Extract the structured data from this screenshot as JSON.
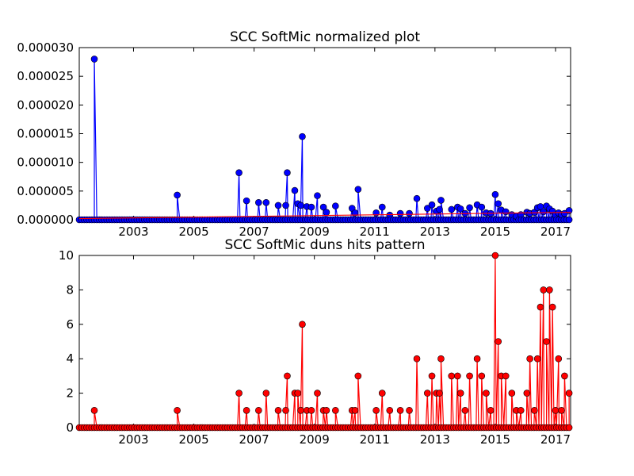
{
  "chart_data": [
    {
      "type": "line",
      "title": "SCC SoftMic normalized plot",
      "xlim": [
        2001.2,
        2017.5
      ],
      "ylim": [
        0,
        3e-05
      ],
      "x_ticks": [
        "2003",
        "2005",
        "2007",
        "2009",
        "2011",
        "2013",
        "2015",
        "2017"
      ],
      "y_ticks": [
        "0.000000",
        "0.000005",
        "0.000010",
        "0.000015",
        "0.000020",
        "0.000025",
        "0.000030"
      ],
      "series": [
        {
          "color": "#0000ff",
          "marker": "circle",
          "x": [
            2001.7,
            2004.45,
            2006.5,
            2006.75,
            2007.15,
            2007.4,
            2007.8,
            2008.05,
            2008.1,
            2008.35,
            2008.45,
            2008.55,
            2008.6,
            2008.75,
            2008.9,
            2009.1,
            2009.3,
            2009.4,
            2009.7,
            2010.25,
            2010.35,
            2010.45,
            2011.05,
            2011.25,
            2011.5,
            2011.85,
            2012.15,
            2012.4,
            2012.75,
            2012.9,
            2013.05,
            2013.15,
            2013.2,
            2013.55,
            2013.75,
            2013.85,
            2014.0,
            2014.15,
            2014.4,
            2014.55,
            2014.7,
            2014.85,
            2015.0,
            2015.1,
            2015.2,
            2015.35,
            2015.55,
            2015.7,
            2015.85,
            2016.05,
            2016.15,
            2016.3,
            2016.4,
            2016.5,
            2016.6,
            2016.7,
            2016.8,
            2016.9,
            2017.0,
            2017.1,
            2017.2,
            2017.3,
            2017.45
          ],
          "y": [
            2.8e-05,
            4.3e-06,
            8.2e-06,
            3.3e-06,
            3e-06,
            3e-06,
            2.5e-06,
            2.5e-06,
            8.2e-06,
            5.1e-06,
            2.8e-06,
            2.5e-06,
            1.45e-05,
            2.3e-06,
            2.2e-06,
            4.2e-06,
            2.2e-06,
            1.3e-06,
            2.4e-06,
            2e-06,
            1.2e-06,
            5.3e-06,
            1.2e-06,
            2.2e-06,
            8e-07,
            1.1e-06,
            1.1e-06,
            3.7e-06,
            2e-06,
            2.6e-06,
            1.5e-06,
            1.8e-06,
            3.4e-06,
            1.8e-06,
            2.2e-06,
            1.9e-06,
            1.1e-06,
            2.1e-06,
            2.6e-06,
            2.2e-06,
            1.2e-06,
            1.1e-06,
            4.4e-06,
            2.8e-06,
            1.7e-06,
            1.4e-06,
            9e-07,
            6e-07,
            9e-07,
            1.3e-06,
            1.1e-06,
            1.3e-06,
            2.1e-06,
            2.3e-06,
            1.4e-06,
            2.4e-06,
            1.9e-06,
            1.5e-06,
            8e-07,
            1.2e-06,
            9e-07,
            1.1e-06,
            1.6e-06
          ]
        },
        {
          "color": "#ff0000",
          "marker": "none",
          "x": [
            2001.2,
            2017.5
          ],
          "y": [
            2e-07,
            1.3e-06
          ]
        }
      ]
    },
    {
      "type": "line",
      "title": "SCC SoftMic duns hits pattern",
      "xlim": [
        2001.2,
        2017.5
      ],
      "ylim": [
        0,
        10
      ],
      "x_ticks": [
        "2003",
        "2005",
        "2007",
        "2009",
        "2011",
        "2013",
        "2015",
        "2017"
      ],
      "y_ticks": [
        "0",
        "2",
        "4",
        "6",
        "8",
        "10"
      ],
      "series": [
        {
          "color": "#ff0000",
          "marker": "circle",
          "x": [
            2001.7,
            2004.45,
            2006.5,
            2006.75,
            2007.15,
            2007.4,
            2007.8,
            2008.05,
            2008.1,
            2008.35,
            2008.45,
            2008.55,
            2008.6,
            2008.75,
            2008.9,
            2009.1,
            2009.3,
            2009.4,
            2009.7,
            2010.25,
            2010.35,
            2010.45,
            2011.05,
            2011.25,
            2011.5,
            2011.85,
            2012.15,
            2012.4,
            2012.75,
            2012.9,
            2013.05,
            2013.15,
            2013.2,
            2013.55,
            2013.75,
            2013.85,
            2014.0,
            2014.15,
            2014.4,
            2014.55,
            2014.7,
            2014.85,
            2015.0,
            2015.1,
            2015.2,
            2015.35,
            2015.55,
            2015.7,
            2015.85,
            2016.05,
            2016.15,
            2016.3,
            2016.4,
            2016.5,
            2016.6,
            2016.7,
            2016.8,
            2016.9,
            2017.0,
            2017.1,
            2017.2,
            2017.3,
            2017.45
          ],
          "y": [
            1,
            1,
            2,
            1,
            1,
            2,
            1,
            1,
            3,
            2,
            2,
            1,
            6,
            1,
            1,
            2,
            1,
            1,
            1,
            1,
            1,
            3,
            1,
            2,
            1,
            1,
            1,
            4,
            2,
            3,
            2,
            2,
            4,
            3,
            3,
            2,
            1,
            3,
            4,
            3,
            2,
            1,
            10,
            5,
            3,
            3,
            2,
            1,
            1,
            2,
            4,
            1,
            4,
            7,
            8,
            5,
            8,
            7,
            1,
            4,
            1,
            3,
            2
          ]
        }
      ]
    }
  ]
}
